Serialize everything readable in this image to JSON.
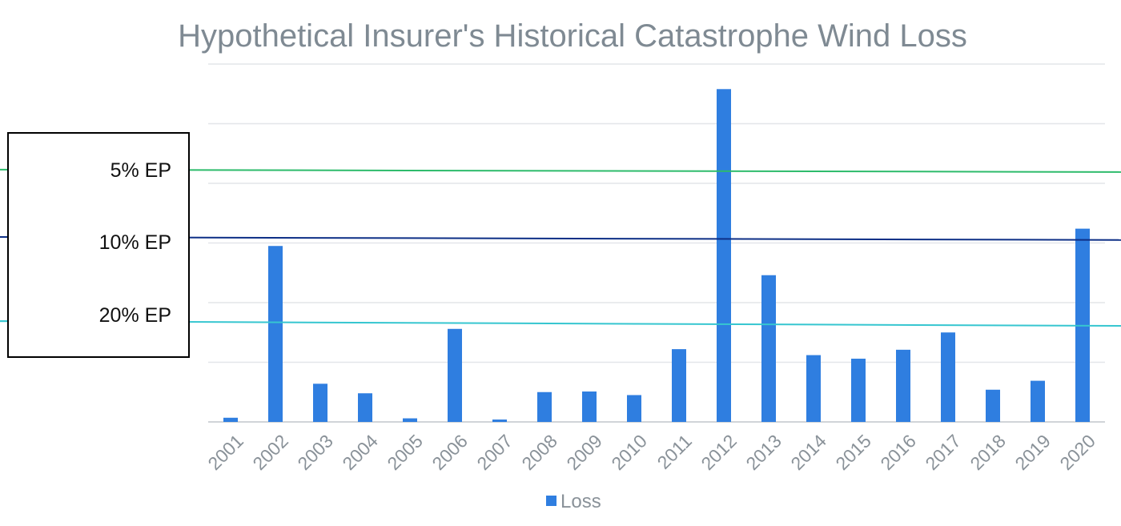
{
  "chart_data": {
    "type": "bar",
    "title": "Hypothetical Insurer's Historical Catastrophe Wind Loss",
    "xlabel": "",
    "ylabel": "",
    "categories": [
      "2001",
      "2002",
      "2003",
      "2004",
      "2005",
      "2006",
      "2007",
      "2008",
      "2009",
      "2010",
      "2011",
      "2012",
      "2013",
      "2014",
      "2015",
      "2016",
      "2017",
      "2018",
      "2019",
      "2020"
    ],
    "series": [
      {
        "name": "Loss",
        "color": "#2f7ee0",
        "values": [
          0.7,
          29.5,
          6.4,
          4.8,
          0.6,
          15.6,
          0.4,
          5.0,
          5.1,
          4.5,
          12.2,
          55.8,
          24.6,
          11.2,
          10.6,
          12.1,
          15.0,
          5.4,
          6.9,
          32.4
        ]
      }
    ],
    "ylim": [
      0,
      60
    ],
    "y_ticks_shown": false,
    "grid": true,
    "legend_position": "bottom",
    "reference_lines": [
      {
        "label": "5%   EP",
        "value": 42.3,
        "value_end": 41.9,
        "color": "#2dbb6b"
      },
      {
        "label": "10% EP",
        "value": 31.0,
        "value_end": 30.5,
        "color": "#0d2f86"
      },
      {
        "label": "20% EP",
        "value": 16.9,
        "value_end": 16.1,
        "color": "#36c6d0"
      }
    ]
  }
}
